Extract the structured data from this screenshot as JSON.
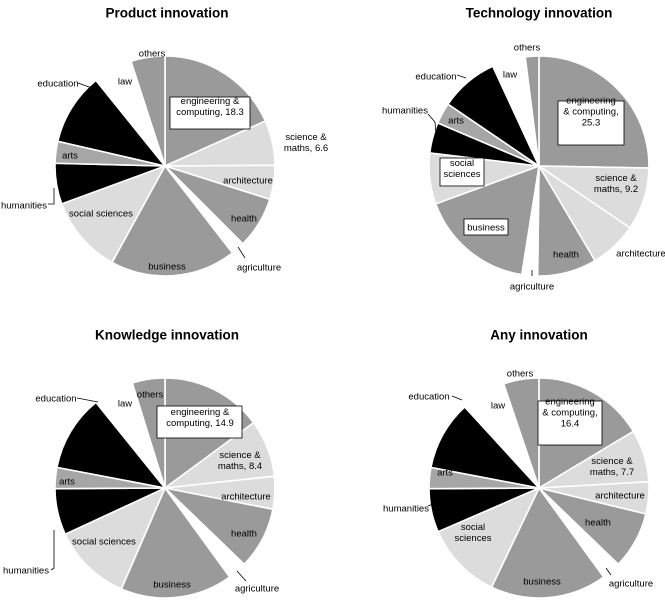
{
  "figure": {
    "colors": {
      "black": "#000000",
      "dark": "#9a9a9a",
      "mid": "#a6a6a6",
      "light": "#dcdcdc",
      "white": "#ffffff"
    }
  },
  "chart_data": [
    {
      "type": "pie",
      "title": "Product innovation",
      "slices": [
        {
          "label": "engineering & computing, 18.3",
          "value": 18.3,
          "tone": "dark"
        },
        {
          "label": "science & maths, 6.6",
          "value": 6.6,
          "tone": "light"
        },
        {
          "label": "architecture",
          "value": 5.0,
          "tone": "light"
        },
        {
          "label": "health",
          "value": 7.6,
          "tone": "dark"
        },
        {
          "label": "agriculture",
          "value": 2.0,
          "tone": "white"
        },
        {
          "label": "business",
          "value": 18.5,
          "tone": "dark"
        },
        {
          "label": "social sciences",
          "value": 11.4,
          "tone": "light"
        },
        {
          "label": "humanities",
          "value": 6.0,
          "tone": "black"
        },
        {
          "label": "arts",
          "value": 3.2,
          "tone": "mid"
        },
        {
          "label": "education",
          "value": 10.6,
          "tone": "black"
        },
        {
          "label": "law",
          "value": 5.8,
          "tone": "white"
        },
        {
          "label": "others",
          "value": 5.0,
          "tone": "dark"
        }
      ]
    },
    {
      "type": "pie",
      "title": "Technology innovation",
      "slices": [
        {
          "label": "engineering & computing, 25.3",
          "value": 25.3,
          "tone": "dark"
        },
        {
          "label": "science & maths, 9.2",
          "value": 9.2,
          "tone": "light"
        },
        {
          "label": "architecture",
          "value": 7.0,
          "tone": "light"
        },
        {
          "label": "health",
          "value": 8.7,
          "tone": "dark"
        },
        {
          "label": "agriculture",
          "value": 2.3,
          "tone": "white"
        },
        {
          "label": "business",
          "value": 16.9,
          "tone": "dark"
        },
        {
          "label": "social sciences",
          "value": 7.5,
          "tone": "light"
        },
        {
          "label": "humanities",
          "value": 4.5,
          "tone": "black"
        },
        {
          "label": "arts",
          "value": 3.1,
          "tone": "mid"
        },
        {
          "label": "education",
          "value": 8.6,
          "tone": "black"
        },
        {
          "label": "law",
          "value": 4.9,
          "tone": "white"
        },
        {
          "label": "others",
          "value": 2.0,
          "tone": "dark"
        }
      ]
    },
    {
      "type": "pie",
      "title": "Knowledge innovation",
      "slices": [
        {
          "label": "engineering & computing, 14.9",
          "value": 14.9,
          "tone": "dark"
        },
        {
          "label": "science & maths, 8.4",
          "value": 8.4,
          "tone": "light"
        },
        {
          "label": "architecture",
          "value": 4.8,
          "tone": "light"
        },
        {
          "label": "health",
          "value": 9.1,
          "tone": "dark"
        },
        {
          "label": "agriculture",
          "value": 2.8,
          "tone": "white"
        },
        {
          "label": "business",
          "value": 16.5,
          "tone": "dark"
        },
        {
          "label": "social sciences",
          "value": 11.6,
          "tone": "light"
        },
        {
          "label": "humanities",
          "value": 6.8,
          "tone": "black"
        },
        {
          "label": "arts",
          "value": 3.1,
          "tone": "mid"
        },
        {
          "label": "education",
          "value": 11.2,
          "tone": "black"
        },
        {
          "label": "law",
          "value": 6.0,
          "tone": "white"
        },
        {
          "label": "others",
          "value": 4.8,
          "tone": "dark"
        }
      ]
    },
    {
      "type": "pie",
      "title": "Any innovation",
      "slices": [
        {
          "label": "engineering & computing, 16.4",
          "value": 16.4,
          "tone": "dark"
        },
        {
          "label": "science & maths, 7.7",
          "value": 7.7,
          "tone": "light"
        },
        {
          "label": "architecture",
          "value": 4.7,
          "tone": "light"
        },
        {
          "label": "health",
          "value": 8.4,
          "tone": "dark"
        },
        {
          "label": "agriculture",
          "value": 2.8,
          "tone": "white"
        },
        {
          "label": "business",
          "value": 17.1,
          "tone": "dark"
        },
        {
          "label": "social sciences",
          "value": 11.4,
          "tone": "light"
        },
        {
          "label": "humanities",
          "value": 6.4,
          "tone": "black"
        },
        {
          "label": "arts",
          "value": 3.1,
          "tone": "mid"
        },
        {
          "label": "education",
          "value": 10.2,
          "tone": "black"
        },
        {
          "label": "law",
          "value": 6.6,
          "tone": "white"
        },
        {
          "label": "others",
          "value": 5.2,
          "tone": "dark"
        }
      ]
    }
  ]
}
